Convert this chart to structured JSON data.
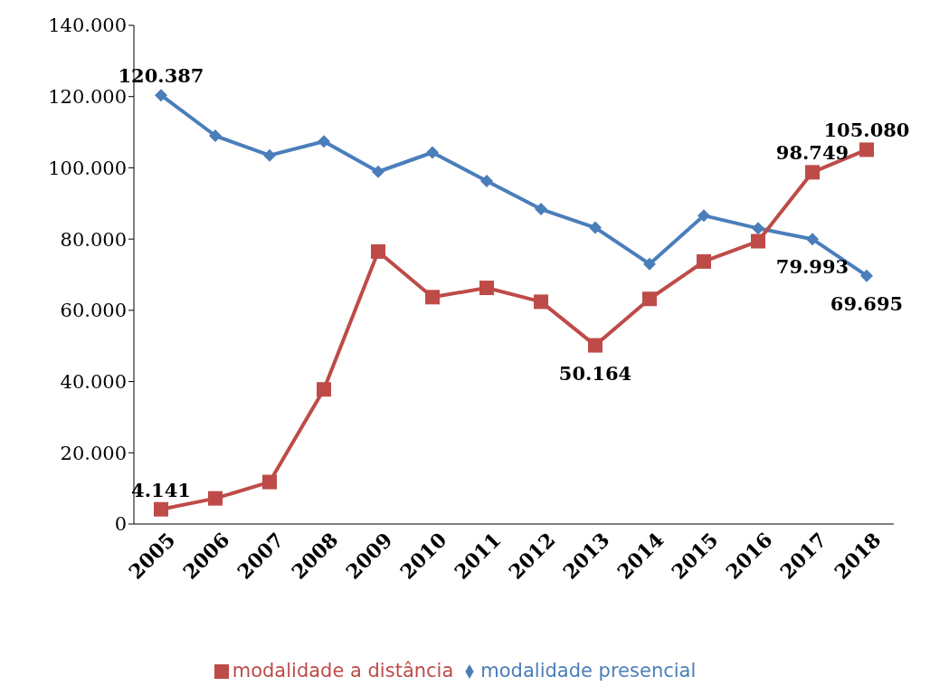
{
  "chart_data": {
    "type": "line",
    "categories": [
      "2005",
      "2006",
      "2007",
      "2008",
      "2009",
      "2010",
      "2011",
      "2012",
      "2013",
      "2014",
      "2015",
      "2016",
      "2017",
      "2018"
    ],
    "series": [
      {
        "name": "modalidade presencial",
        "color": "#4a7ebb",
        "marker": "diamond",
        "values": [
          120387,
          109000,
          103500,
          107400,
          98900,
          104300,
          96300,
          88400,
          83200,
          73000,
          86600,
          83000,
          79993,
          69695
        ],
        "value_labels": [
          "120.387",
          null,
          null,
          null,
          null,
          null,
          null,
          null,
          null,
          null,
          null,
          null,
          "79.993",
          "69.695"
        ]
      },
      {
        "name": "modalidade a distância",
        "color": "#be4b48",
        "marker": "square",
        "values": [
          4141,
          7200,
          11800,
          37800,
          76500,
          63700,
          66300,
          62400,
          50164,
          63200,
          73700,
          79400,
          98749,
          105080
        ],
        "value_labels": [
          "4.141",
          null,
          null,
          null,
          null,
          null,
          null,
          null,
          "50.164",
          null,
          null,
          null,
          "98.749",
          "105.080"
        ]
      }
    ],
    "ylim": [
      0,
      140000
    ],
    "yticks": [
      {
        "value": 0,
        "label": "0"
      },
      {
        "value": 20000,
        "label": "20.000"
      },
      {
        "value": 40000,
        "label": "40.000"
      },
      {
        "value": 60000,
        "label": "60.000"
      },
      {
        "value": 80000,
        "label": "80.000"
      },
      {
        "value": 100000,
        "label": "100.000"
      },
      {
        "value": 120000,
        "label": "120.000"
      },
      {
        "value": 140000,
        "label": "140.000"
      }
    ],
    "legend": "bottom",
    "grid": false
  }
}
